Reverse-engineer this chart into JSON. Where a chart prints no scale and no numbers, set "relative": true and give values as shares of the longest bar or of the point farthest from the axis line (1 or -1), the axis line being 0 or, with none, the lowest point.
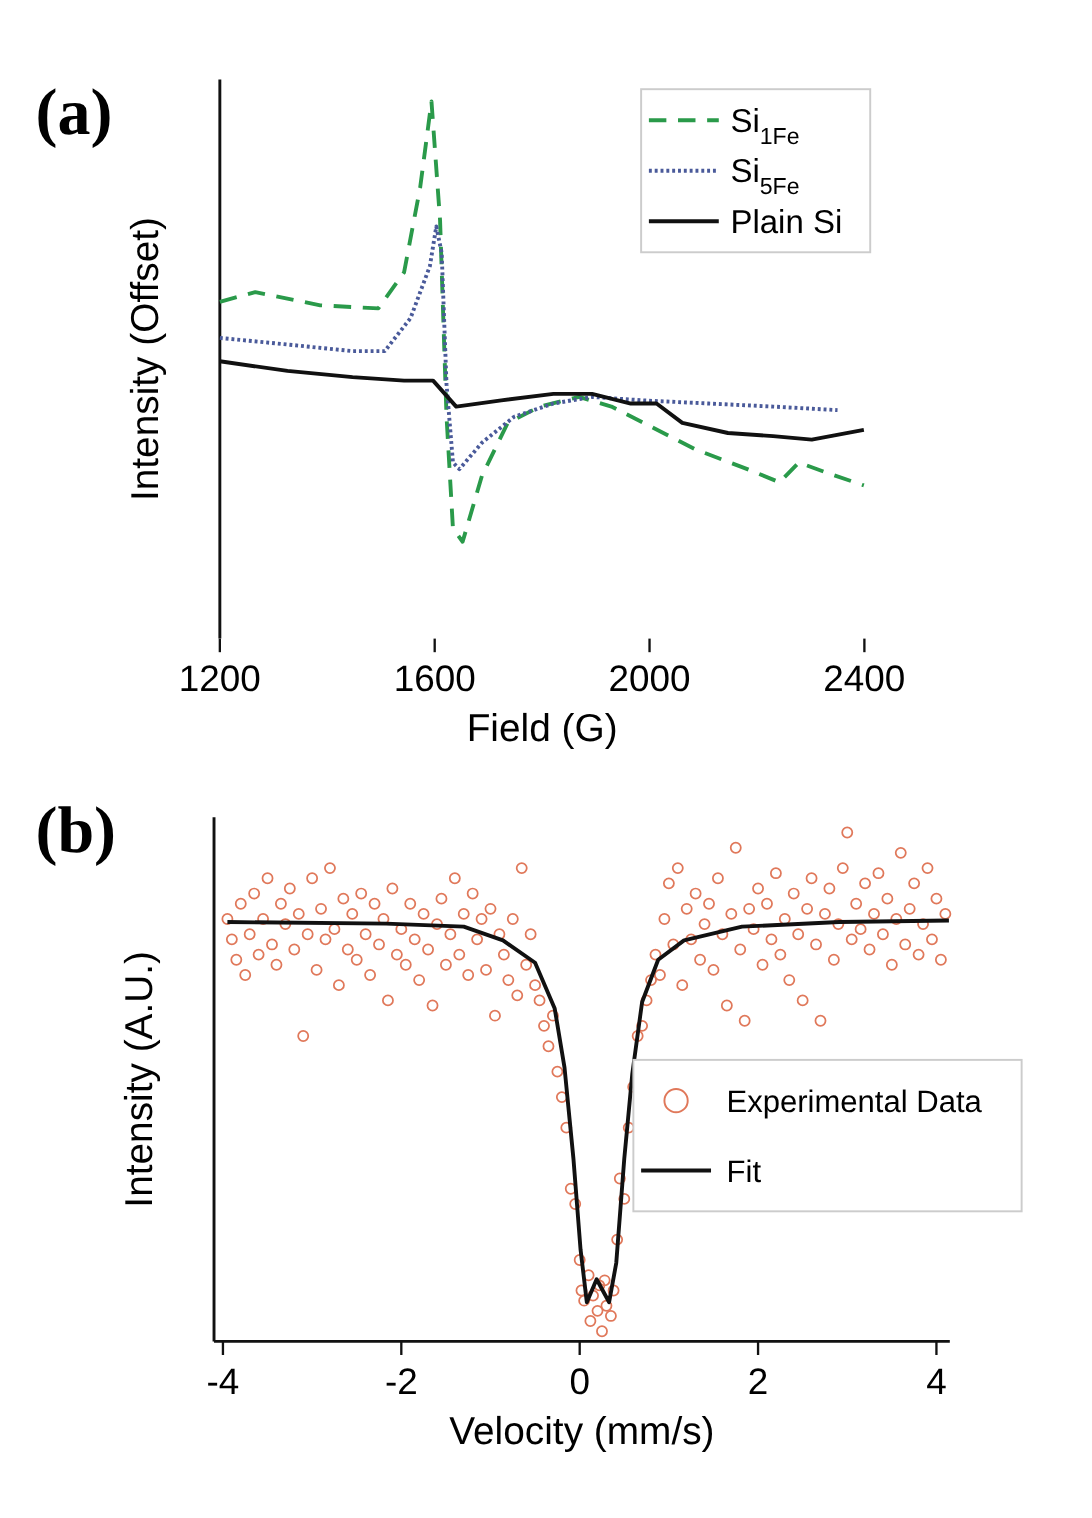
{
  "chart_data": [
    {
      "type": "line",
      "title": "(a)",
      "xlabel": "Field (G)",
      "ylabel": "Intensity (Offset)",
      "relative": true,
      "xlim": [
        1200,
        2400
      ],
      "xticks": [
        1200,
        1600,
        2000,
        2400
      ],
      "legend": "top right",
      "series": [
        {
          "name": "Si$_{1Fe}$",
          "color": "#2a9a4a",
          "line_style": "dashed",
          "x": [
            1200,
            1266,
            1387,
            1495,
            1543,
            1573,
            1594,
            1610,
            1622,
            1634,
            1652,
            1688,
            1736,
            1796,
            1869,
            1929,
            1989,
            2085,
            2182,
            2242,
            2278,
            2327,
            2399
          ],
          "values": [
            0.545,
            0.567,
            0.537,
            0.53,
            0.612,
            0.805,
            1.0,
            0.73,
            0.285,
            0.03,
            0,
            0.15,
            0.27,
            0.307,
            0.329,
            0.307,
            0.27,
            0.21,
            0.165,
            0.135,
            0.18,
            0.158,
            0.128
          ]
        },
        {
          "name": "Si$_{5Fe}$",
          "color": "#4a5a9a",
          "line_style": "dotted",
          "x": [
            1200,
            1326,
            1447,
            1507,
            1555,
            1591,
            1603,
            1613,
            1622,
            1634,
            1646,
            1688,
            1748,
            1821,
            1893,
            1989,
            2110,
            2230,
            2350
          ],
          "values": [
            0.463,
            0.448,
            0.433,
            0.433,
            0.508,
            0.626,
            0.716,
            0.656,
            0.358,
            0.18,
            0.165,
            0.225,
            0.284,
            0.314,
            0.329,
            0.321,
            0.314,
            0.307,
            0.299
          ]
        },
        {
          "name": "Plain Si",
          "color": "#111111",
          "line_style": "solid",
          "x": [
            1200,
            1326,
            1447,
            1543,
            1597,
            1640,
            1724,
            1821,
            1893,
            1965,
            2013,
            2061,
            2146,
            2230,
            2302,
            2399
          ],
          "values": [
            0.41,
            0.388,
            0.374,
            0.366,
            0.366,
            0.307,
            0.321,
            0.336,
            0.336,
            0.314,
            0.314,
            0.27,
            0.247,
            0.24,
            0.232,
            0.254
          ]
        }
      ]
    },
    {
      "type": "scatter",
      "title": "(b)",
      "xlabel": "Velocity (mm/s)",
      "ylabel": "Intensity (A.U.)",
      "relative": true,
      "xlim": [
        -4.1,
        4.15
      ],
      "xticks": [
        -4,
        -2,
        0,
        2,
        4
      ],
      "legend": "right",
      "series": [
        {
          "name": "Experimental Data",
          "marker": "circle",
          "color": "#e0785a",
          "x": [
            -3.95,
            -3.9,
            -3.85,
            -3.8,
            -3.75,
            -3.7,
            -3.65,
            -3.6,
            -3.55,
            -3.5,
            -3.45,
            -3.4,
            -3.35,
            -3.3,
            -3.25,
            -3.2,
            -3.15,
            -3.1,
            -3.05,
            -3.0,
            -2.95,
            -2.9,
            -2.85,
            -2.8,
            -2.75,
            -2.7,
            -2.65,
            -2.6,
            -2.55,
            -2.5,
            -2.45,
            -2.4,
            -2.35,
            -2.3,
            -2.25,
            -2.2,
            -2.15,
            -2.1,
            -2.05,
            -2.0,
            -1.95,
            -1.9,
            -1.85,
            -1.8,
            -1.75,
            -1.7,
            -1.65,
            -1.6,
            -1.55,
            -1.5,
            -1.45,
            -1.4,
            -1.35,
            -1.3,
            -1.25,
            -1.2,
            -1.15,
            -1.1,
            -1.05,
            -1.0,
            -0.95,
            -0.9,
            -0.85,
            -0.8,
            -0.75,
            -0.7,
            -0.65,
            -0.6,
            -0.55,
            -0.5,
            -0.45,
            -0.4,
            -0.35,
            -0.3,
            -0.25,
            -0.2,
            -0.15,
            -0.1,
            -0.05,
            0.0,
            0.02,
            0.05,
            0.1,
            0.12,
            0.15,
            0.2,
            0.22,
            0.25,
            0.28,
            0.3,
            0.35,
            0.38,
            0.42,
            0.45,
            0.5,
            0.55,
            0.6,
            0.65,
            0.7,
            0.75,
            0.8,
            0.85,
            0.9,
            0.95,
            1.0,
            1.05,
            1.1,
            1.15,
            1.2,
            1.25,
            1.3,
            1.35,
            1.4,
            1.45,
            1.5,
            1.55,
            1.6,
            1.65,
            1.7,
            1.75,
            1.8,
            1.85,
            1.9,
            1.95,
            2.0,
            2.05,
            2.1,
            2.15,
            2.2,
            2.25,
            2.3,
            2.35,
            2.4,
            2.45,
            2.5,
            2.55,
            2.6,
            2.65,
            2.7,
            2.75,
            2.8,
            2.85,
            2.9,
            2.95,
            3.0,
            3.05,
            3.1,
            3.15,
            3.2,
            3.25,
            3.3,
            3.35,
            3.4,
            3.45,
            3.5,
            3.55,
            3.6,
            3.65,
            3.7,
            3.75,
            3.8,
            3.85,
            3.9,
            3.95,
            4.0,
            4.05,
            4.1
          ],
          "values": [
            0.83,
            0.79,
            0.75,
            0.86,
            0.72,
            0.8,
            0.88,
            0.76,
            0.83,
            0.91,
            0.78,
            0.74,
            0.86,
            0.82,
            0.89,
            0.77,
            0.84,
            0.6,
            0.8,
            0.91,
            0.73,
            0.85,
            0.79,
            0.93,
            0.81,
            0.7,
            0.87,
            0.77,
            0.84,
            0.75,
            0.88,
            0.8,
            0.72,
            0.86,
            0.78,
            0.83,
            0.67,
            0.89,
            0.76,
            0.81,
            0.74,
            0.86,
            0.79,
            0.71,
            0.84,
            0.77,
            0.66,
            0.82,
            0.87,
            0.74,
            0.8,
            0.91,
            0.76,
            0.84,
            0.72,
            0.88,
            0.79,
            0.83,
            0.73,
            0.85,
            0.64,
            0.8,
            0.76,
            0.71,
            0.83,
            0.68,
            0.93,
            0.74,
            0.8,
            0.7,
            0.67,
            0.62,
            0.58,
            0.64,
            0.53,
            0.48,
            0.42,
            0.3,
            0.27,
            0.16,
            0.1,
            0.08,
            0.13,
            0.04,
            0.09,
            0.06,
            0.11,
            0.02,
            0.12,
            0.07,
            0.05,
            0.1,
            0.2,
            0.32,
            0.28,
            0.42,
            0.5,
            0.6,
            0.62,
            0.67,
            0.71,
            0.76,
            0.72,
            0.83,
            0.9,
            0.78,
            0.93,
            0.7,
            0.85,
            0.79,
            0.88,
            0.75,
            0.82,
            0.86,
            0.73,
            0.91,
            0.8,
            0.66,
            0.84,
            0.97,
            0.77,
            0.63,
            0.85,
            0.81,
            0.89,
            0.74,
            0.86,
            0.79,
            0.92,
            0.76,
            0.83,
            0.71,
            0.88,
            0.8,
            0.67,
            0.85,
            0.91,
            0.78,
            0.63,
            0.84,
            0.89,
            0.75,
            0.82,
            0.93,
            1.0,
            0.79,
            0.86,
            0.81,
            0.9,
            0.77,
            0.84,
            0.92,
            0.8,
            0.87,
            0.74,
            0.83,
            0.96,
            0.78,
            0.85,
            0.9,
            0.76,
            0.82,
            0.93,
            0.79,
            0.87,
            0.75,
            0.84
          ]
        },
        {
          "name": "Fit",
          "type": "line",
          "color": "#111111",
          "line_style": "solid",
          "x": [
            -3.95,
            -2.17,
            -1.3,
            -0.86,
            -0.5,
            -0.28,
            -0.17,
            -0.07,
            0.01,
            0.08,
            0.19,
            0.33,
            0.41,
            0.5,
            0.59,
            0.7,
            0.88,
            1.17,
            1.82,
            2.91,
            4.14
          ],
          "values": [
            0.824,
            0.821,
            0.815,
            0.788,
            0.744,
            0.654,
            0.538,
            0.359,
            0.18,
            0.077,
            0.122,
            0.077,
            0.154,
            0.359,
            0.526,
            0.667,
            0.75,
            0.788,
            0.815,
            0.824,
            0.827
          ]
        }
      ]
    }
  ]
}
